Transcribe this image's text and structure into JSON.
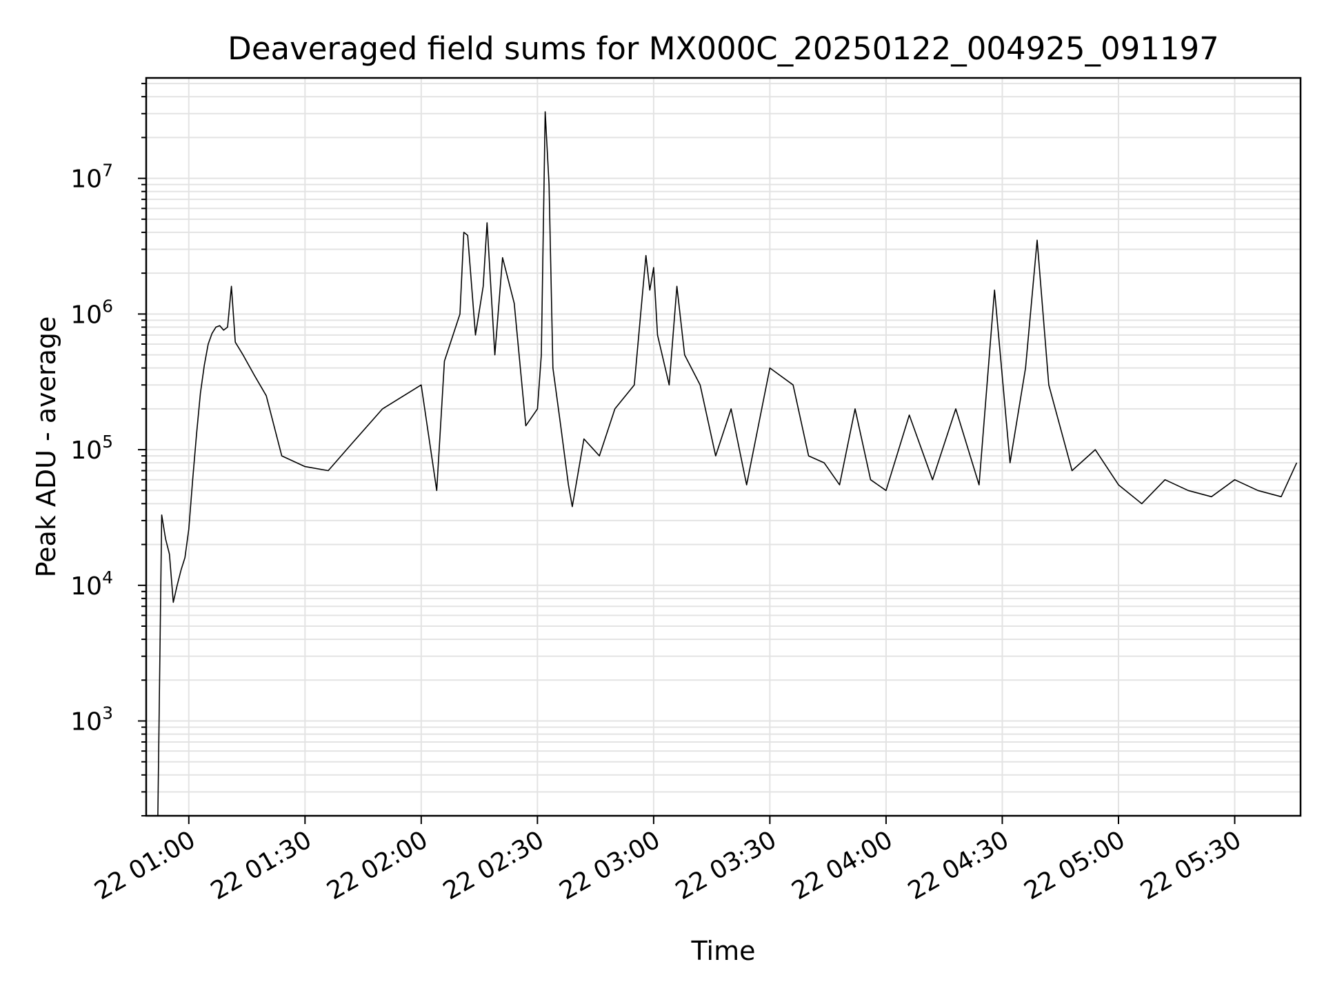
{
  "chart_data": {
    "type": "line",
    "title": "Deaveraged field sums for MX000C_20250122_004925_091197",
    "xlabel": "Time",
    "ylabel": "Peak ADU - average",
    "yscale": "log",
    "ylim": [
      200,
      55000000
    ],
    "xlim": [
      "22 00:49",
      "22 05:47"
    ],
    "grid": true,
    "grid_which": "both",
    "line_color": "#000000",
    "x_ticks": [
      "22 01:00",
      "22 01:30",
      "22 02:00",
      "22 02:30",
      "22 03:00",
      "22 03:30",
      "22 04:00",
      "22 04:30",
      "22 05:00",
      "22 05:30"
    ],
    "y_ticks": [
      {
        "base": "10",
        "exp": "3",
        "value": 1000
      },
      {
        "base": "10",
        "exp": "4",
        "value": 10000
      },
      {
        "base": "10",
        "exp": "5",
        "value": 100000
      },
      {
        "base": "10",
        "exp": "6",
        "value": 1000000
      },
      {
        "base": "10",
        "exp": "7",
        "value": 10000000
      }
    ],
    "series": [
      {
        "points": [
          [
            "22 00:52",
            200
          ],
          [
            "22 00:53",
            33000
          ],
          [
            "22 00:54",
            22000
          ],
          [
            "22 00:55",
            17000
          ],
          [
            "22 00:56",
            7500
          ],
          [
            "22 00:57",
            10000
          ],
          [
            "22 00:58",
            13000
          ],
          [
            "22 00:59",
            16000
          ],
          [
            "22 01:00",
            26000
          ],
          [
            "22 01:01",
            60000
          ],
          [
            "22 01:02",
            130000
          ],
          [
            "22 01:03",
            260000
          ],
          [
            "22 01:04",
            420000
          ],
          [
            "22 01:05",
            600000
          ],
          [
            "22 01:06",
            720000
          ],
          [
            "22 01:07",
            800000
          ],
          [
            "22 01:08",
            820000
          ],
          [
            "22 01:09",
            760000
          ],
          [
            "22 01:10",
            800000
          ],
          [
            "22 01:11",
            1600000
          ],
          [
            "22 01:12",
            620000
          ],
          [
            "22 01:14",
            500000
          ],
          [
            "22 01:17",
            350000
          ],
          [
            "22 01:20",
            250000
          ],
          [
            "22 01:24",
            90000
          ],
          [
            "22 01:30",
            75000
          ],
          [
            "22 01:36",
            70000
          ],
          [
            "22 01:42",
            110000
          ],
          [
            "22 01:50",
            200000
          ],
          [
            "22 02:00",
            300000
          ],
          [
            "22 02:04",
            50000
          ],
          [
            "22 02:06",
            450000
          ],
          [
            "22 02:10",
            1000000
          ],
          [
            "22 02:11",
            4000000
          ],
          [
            "22 02:12",
            3800000
          ],
          [
            "22 02:14",
            700000
          ],
          [
            "22 02:16",
            1600000
          ],
          [
            "22 02:17",
            4700000
          ],
          [
            "22 02:19",
            500000
          ],
          [
            "22 02:21",
            2600000
          ],
          [
            "22 02:24",
            1200000
          ],
          [
            "22 02:27",
            150000
          ],
          [
            "22 02:30",
            200000
          ],
          [
            "22 02:31",
            500000
          ],
          [
            "22 02:32",
            31000000
          ],
          [
            "22 02:33",
            9000000
          ],
          [
            "22 02:34",
            400000
          ],
          [
            "22 02:36",
            150000
          ],
          [
            "22 02:38",
            55000
          ],
          [
            "22 02:39",
            38000
          ],
          [
            "22 02:42",
            120000
          ],
          [
            "22 02:46",
            90000
          ],
          [
            "22 02:50",
            200000
          ],
          [
            "22 02:55",
            300000
          ],
          [
            "22 02:58",
            2700000
          ],
          [
            "22 02:59",
            1500000
          ],
          [
            "22 03:00",
            2200000
          ],
          [
            "22 03:01",
            700000
          ],
          [
            "22 03:04",
            300000
          ],
          [
            "22 03:06",
            1600000
          ],
          [
            "22 03:08",
            500000
          ],
          [
            "22 03:12",
            300000
          ],
          [
            "22 03:16",
            90000
          ],
          [
            "22 03:20",
            200000
          ],
          [
            "22 03:24",
            55000
          ],
          [
            "22 03:30",
            400000
          ],
          [
            "22 03:36",
            300000
          ],
          [
            "22 03:40",
            90000
          ],
          [
            "22 03:44",
            80000
          ],
          [
            "22 03:48",
            55000
          ],
          [
            "22 03:52",
            200000
          ],
          [
            "22 03:56",
            60000
          ],
          [
            "22 04:00",
            50000
          ],
          [
            "22 04:06",
            180000
          ],
          [
            "22 04:12",
            60000
          ],
          [
            "22 04:18",
            200000
          ],
          [
            "22 04:24",
            55000
          ],
          [
            "22 04:28",
            1500000
          ],
          [
            "22 04:32",
            80000
          ],
          [
            "22 04:36",
            400000
          ],
          [
            "22 04:39",
            3500000
          ],
          [
            "22 04:42",
            300000
          ],
          [
            "22 04:48",
            70000
          ],
          [
            "22 04:54",
            100000
          ],
          [
            "22 05:00",
            55000
          ],
          [
            "22 05:06",
            40000
          ],
          [
            "22 05:12",
            60000
          ],
          [
            "22 05:18",
            50000
          ],
          [
            "22 05:24",
            45000
          ],
          [
            "22 05:30",
            60000
          ],
          [
            "22 05:36",
            50000
          ],
          [
            "22 05:42",
            45000
          ],
          [
            "22 05:46",
            80000
          ]
        ]
      }
    ]
  }
}
